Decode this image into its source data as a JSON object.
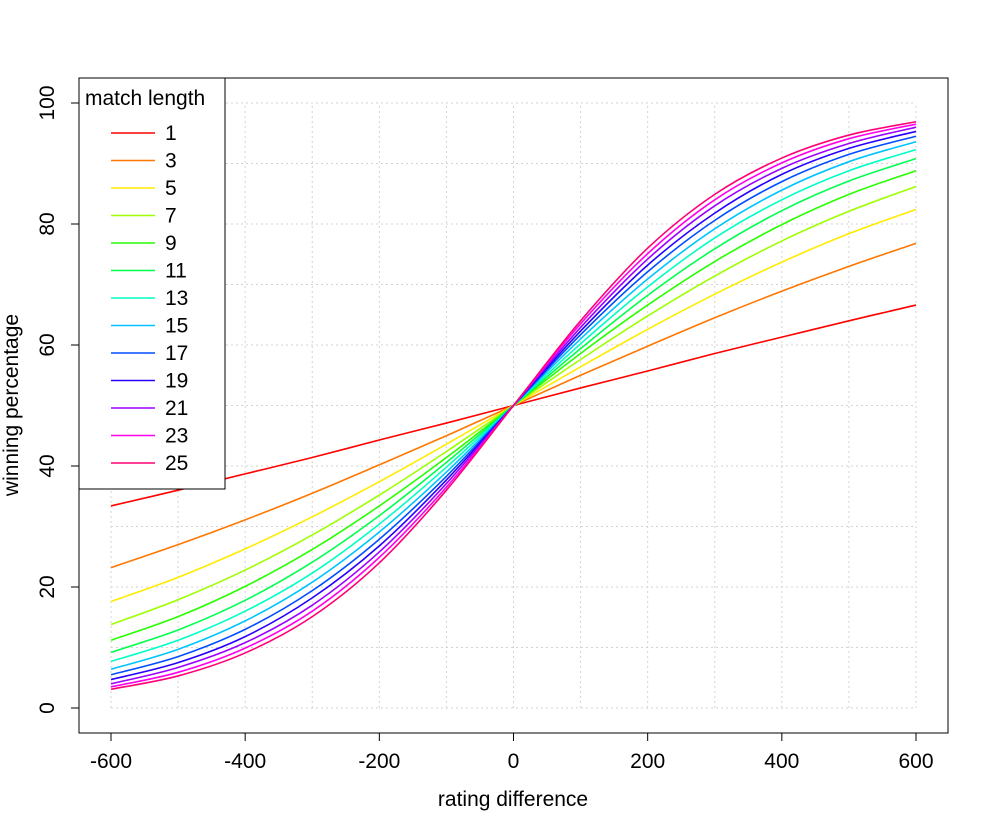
{
  "chart_data": {
    "type": "line",
    "title": "",
    "xlabel": "rating difference",
    "ylabel": "winning percentage",
    "xlim": [
      -600,
      600
    ],
    "ylim": [
      0,
      100
    ],
    "xticks": [
      -600,
      -400,
      -200,
      0,
      200,
      400,
      600
    ],
    "yticks": [
      0,
      20,
      40,
      60,
      80,
      100
    ],
    "grid": true,
    "legend": {
      "title": "match length",
      "placement": "top-left"
    },
    "x": [
      -600,
      -500,
      -400,
      -300,
      -200,
      -100,
      0,
      100,
      200,
      300,
      400,
      500,
      600
    ],
    "series": [
      {
        "name": "1",
        "color": "#FF0000",
        "values": [
          33.4,
          36.0,
          38.7,
          41.4,
          44.3,
          47.1,
          50,
          52.9,
          55.7,
          58.6,
          61.3,
          64.0,
          66.6
        ]
      },
      {
        "name": "3",
        "color": "#FF7600",
        "values": [
          23.2,
          27.0,
          31.1,
          35.5,
          40.2,
          45.0,
          50,
          55.0,
          59.8,
          64.5,
          68.9,
          73.0,
          76.8
        ]
      },
      {
        "name": "5",
        "color": "#FFEB00",
        "values": [
          17.6,
          21.6,
          26.3,
          31.6,
          37.4,
          43.6,
          50,
          56.4,
          62.6,
          68.4,
          73.7,
          78.4,
          82.4
        ]
      },
      {
        "name": "7",
        "color": "#9DFF00",
        "values": [
          13.8,
          17.9,
          22.8,
          28.6,
          35.2,
          42.4,
          50,
          57.6,
          64.8,
          71.4,
          77.2,
          82.1,
          86.2
        ]
      },
      {
        "name": "9",
        "color": "#27FF00",
        "values": [
          11.2,
          15.1,
          20.1,
          26.2,
          33.4,
          41.4,
          50,
          58.6,
          66.6,
          73.8,
          79.9,
          84.9,
          88.8
        ]
      },
      {
        "name": "11",
        "color": "#00FF4E",
        "values": [
          9.2,
          12.9,
          17.8,
          24.1,
          31.8,
          40.6,
          50,
          59.4,
          68.2,
          75.9,
          82.2,
          87.1,
          90.8
        ]
      },
      {
        "name": "13",
        "color": "#00FFC4",
        "values": [
          7.7,
          11.2,
          16.0,
          22.3,
          30.4,
          39.8,
          50,
          60.2,
          69.6,
          77.7,
          84.0,
          88.8,
          92.3
        ]
      },
      {
        "name": "15",
        "color": "#00C4FF",
        "values": [
          6.4,
          9.7,
          14.4,
          20.8,
          29.1,
          39.0,
          50,
          61.0,
          70.9,
          79.2,
          85.6,
          90.3,
          93.6
        ]
      },
      {
        "name": "17",
        "color": "#004EFF",
        "values": [
          5.5,
          8.5,
          13.0,
          19.4,
          27.9,
          38.3,
          50,
          61.7,
          72.1,
          80.6,
          87.0,
          91.5,
          94.5
        ]
      },
      {
        "name": "19",
        "color": "#2700FF",
        "values": [
          4.7,
          7.5,
          11.8,
          18.2,
          26.8,
          37.7,
          50,
          62.3,
          73.2,
          81.8,
          88.2,
          92.5,
          95.3
        ]
      },
      {
        "name": "21",
        "color": "#9D00FF",
        "values": [
          4.0,
          6.7,
          10.8,
          17.0,
          25.8,
          37.1,
          50,
          62.9,
          74.2,
          83.0,
          89.2,
          93.3,
          96.0
        ]
      },
      {
        "name": "23",
        "color": "#FF00EB",
        "values": [
          3.5,
          5.9,
          9.9,
          16.0,
          24.9,
          36.5,
          50,
          63.5,
          75.1,
          84.0,
          90.1,
          94.1,
          96.5
        ]
      },
      {
        "name": "25",
        "color": "#FF0076",
        "values": [
          3.1,
          5.3,
          9.1,
          15.1,
          24.0,
          36.0,
          50,
          64.0,
          76.0,
          84.9,
          90.9,
          94.7,
          96.9
        ]
      }
    ]
  }
}
